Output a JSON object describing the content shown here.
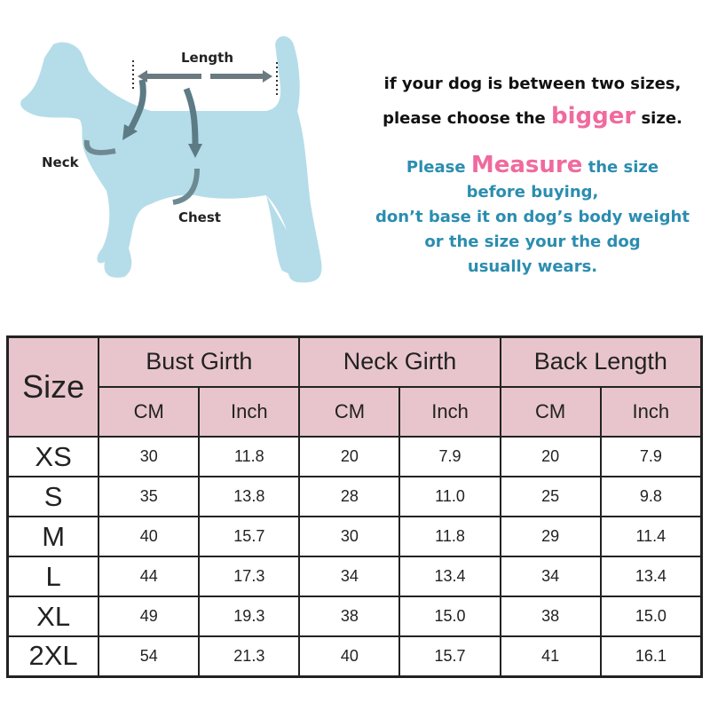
{
  "diagram": {
    "labels": {
      "length": "Length",
      "neck": "Neck",
      "chest": "Chest"
    },
    "dog_color": "#b5dde9"
  },
  "notes": {
    "line1": "if your dog is between two sizes,",
    "line2_pre": "please choose the ",
    "line2_em": "bigger",
    "line2_post": " size.",
    "m_pre": "Please ",
    "m_em": "Measure",
    "m_post": " the size",
    "m2": "before buying,",
    "m3": "don’t base it on dog’s body weight",
    "m4": "or the size your the dog",
    "m5": "usually wears."
  },
  "table": {
    "size_header": "Size",
    "groups": [
      "Bust Girth",
      "Neck Girth",
      "Back Length"
    ],
    "units": [
      "CM",
      "Inch",
      "CM",
      "Inch",
      "CM",
      "Inch"
    ],
    "rows": [
      {
        "size": "XS",
        "values": [
          "30",
          "11.8",
          "20",
          "7.9",
          "20",
          "7.9"
        ]
      },
      {
        "size": "S",
        "values": [
          "35",
          "13.8",
          "28",
          "11.0",
          "25",
          "9.8"
        ]
      },
      {
        "size": "M",
        "values": [
          "40",
          "15.7",
          "30",
          "11.8",
          "29",
          "11.4"
        ]
      },
      {
        "size": "L",
        "values": [
          "44",
          "17.3",
          "34",
          "13.4",
          "34",
          "13.4"
        ]
      },
      {
        "size": "XL",
        "values": [
          "49",
          "19.3",
          "38",
          "15.0",
          "38",
          "15.0"
        ]
      },
      {
        "size": "2XL",
        "values": [
          "54",
          "21.3",
          "40",
          "15.7",
          "41",
          "16.1"
        ]
      }
    ],
    "header_color": "#e8c5cc"
  }
}
